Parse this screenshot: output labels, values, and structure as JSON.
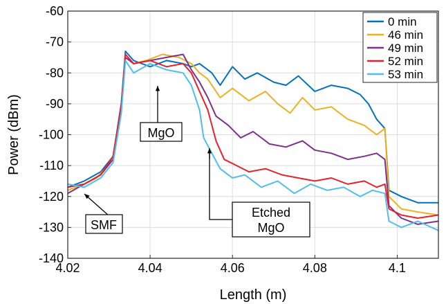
{
  "chart_data": {
    "type": "line",
    "xlabel": "Length (m)",
    "ylabel": "Power (dBm)",
    "xlim": [
      4.02,
      4.11
    ],
    "ylim": [
      -140,
      -60
    ],
    "xticks": [
      4.02,
      4.04,
      4.06,
      4.08,
      4.1
    ],
    "xtick_labels": [
      "4.02",
      "4.04",
      "4.06",
      "4.08",
      "4.1"
    ],
    "yticks": [
      -140,
      -130,
      -120,
      -110,
      -100,
      -90,
      -80,
      -70,
      -60
    ],
    "ytick_labels": [
      "-140",
      "-130",
      "-120",
      "-110",
      "-100",
      "-90",
      "-80",
      "-70",
      "-60"
    ],
    "grid": true,
    "legend_position": "top-right",
    "series": [
      {
        "name": "0 min",
        "color": "#0072BD",
        "x": [
          4.02,
          4.024,
          4.028,
          4.031,
          4.033,
          4.034,
          4.036,
          4.04,
          4.044,
          4.048,
          4.05,
          4.052,
          4.055,
          4.057,
          4.06,
          4.063,
          4.066,
          4.07,
          4.073,
          4.076,
          4.08,
          4.084,
          4.088,
          4.091,
          4.093,
          4.095,
          4.097,
          4.098,
          4.101,
          4.105,
          4.11
        ],
        "y": [
          -117,
          -115,
          -112,
          -107,
          -90,
          -73,
          -76,
          -78,
          -76,
          -77,
          -78,
          -77,
          -80,
          -84,
          -78,
          -82,
          -80,
          -83,
          -84,
          -81,
          -86,
          -84,
          -85,
          -87,
          -90,
          -95,
          -98,
          -118,
          -120,
          -122,
          -122
        ]
      },
      {
        "name": "46 min",
        "color": "#EDB120",
        "x": [
          4.02,
          4.024,
          4.027,
          4.031,
          4.033,
          4.034,
          4.036,
          4.039,
          4.043,
          4.047,
          4.05,
          4.052,
          4.054,
          4.057,
          4.06,
          4.064,
          4.068,
          4.071,
          4.074,
          4.077,
          4.08,
          4.084,
          4.088,
          4.092,
          4.095,
          4.097,
          4.098,
          4.101,
          4.105,
          4.11
        ],
        "y": [
          -118,
          -116,
          -114,
          -108,
          -92,
          -74,
          -77,
          -76,
          -74,
          -75,
          -77,
          -80,
          -82,
          -88,
          -85,
          -89,
          -86,
          -90,
          -93,
          -88,
          -92,
          -91,
          -95,
          -97,
          -100,
          -98,
          -120,
          -124,
          -125,
          -126
        ]
      },
      {
        "name": "49 min",
        "color": "#7E2F8E",
        "x": [
          4.02,
          4.024,
          4.028,
          4.031,
          4.033,
          4.034,
          4.036,
          4.04,
          4.044,
          4.048,
          4.05,
          4.052,
          4.054,
          4.056,
          4.059,
          4.062,
          4.065,
          4.069,
          4.073,
          4.077,
          4.08,
          4.084,
          4.088,
          4.092,
          4.095,
          4.097,
          4.098,
          4.101,
          4.105,
          4.11
        ],
        "y": [
          -119,
          -116,
          -113,
          -108,
          -90,
          -75,
          -77,
          -76,
          -75,
          -74,
          -79,
          -83,
          -88,
          -94,
          -97,
          -101,
          -99,
          -103,
          -104,
          -102,
          -105,
          -106,
          -108,
          -107,
          -106,
          -108,
          -123,
          -127,
          -129,
          -128
        ]
      },
      {
        "name": "52 min",
        "color": "#E8202A",
        "x": [
          4.02,
          4.024,
          4.028,
          4.031,
          4.033,
          4.034,
          4.036,
          4.04,
          4.044,
          4.048,
          4.05,
          4.052,
          4.054,
          4.056,
          4.058,
          4.061,
          4.064,
          4.068,
          4.072,
          4.076,
          4.08,
          4.084,
          4.088,
          4.092,
          4.095,
          4.097,
          4.098,
          4.101,
          4.105,
          4.11
        ],
        "y": [
          -117,
          -116,
          -113,
          -107,
          -91,
          -74,
          -77,
          -76,
          -78,
          -77,
          -80,
          -86,
          -92,
          -102,
          -108,
          -110,
          -112,
          -111,
          -113,
          -114,
          -115,
          -114,
          -116,
          -115,
          -117,
          -116,
          -124,
          -126,
          -127,
          -126
        ]
      },
      {
        "name": "53 min",
        "color": "#4DBEEE",
        "x": [
          4.02,
          4.024,
          4.028,
          4.031,
          4.033,
          4.034,
          4.036,
          4.04,
          4.044,
          4.048,
          4.05,
          4.052,
          4.053,
          4.055,
          4.057,
          4.06,
          4.063,
          4.067,
          4.071,
          4.075,
          4.079,
          4.083,
          4.087,
          4.091,
          4.094,
          4.097,
          4.098,
          4.101,
          4.105,
          4.11
        ],
        "y": [
          -116,
          -117,
          -114,
          -109,
          -93,
          -76,
          -80,
          -77,
          -79,
          -80,
          -84,
          -92,
          -101,
          -106,
          -111,
          -114,
          -113,
          -117,
          -115,
          -119,
          -116,
          -118,
          -117,
          -120,
          -118,
          -119,
          -128,
          -130,
          -128,
          -131
        ]
      }
    ],
    "annotations": [
      {
        "label": "MgO"
      },
      {
        "label": "Etched MgO"
      },
      {
        "label": "SMF"
      }
    ]
  }
}
